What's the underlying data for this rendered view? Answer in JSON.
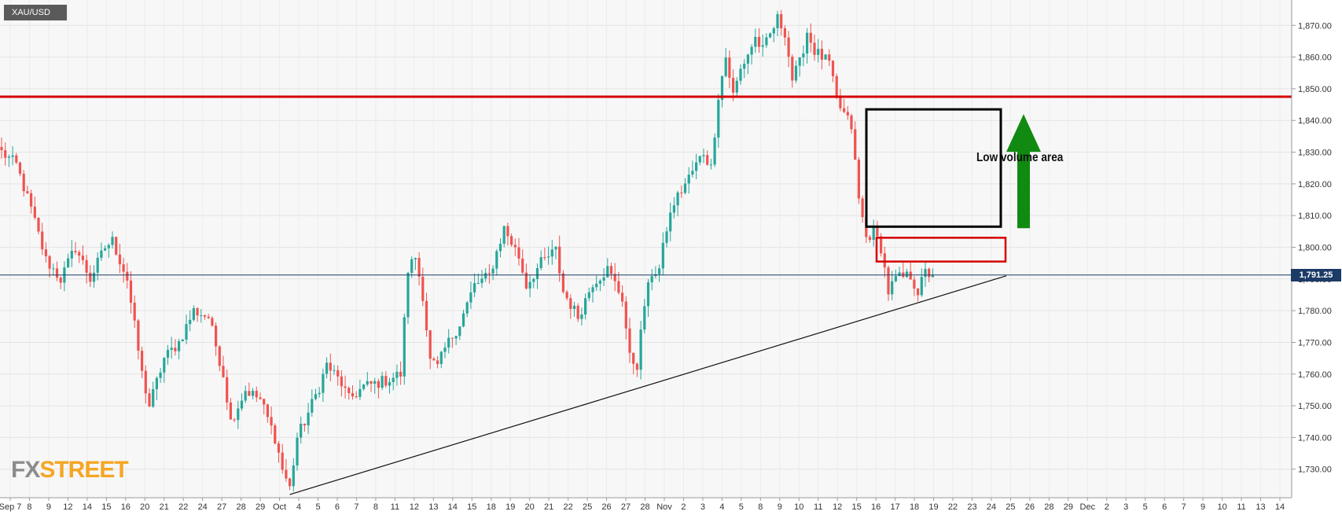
{
  "symbol": "XAU/USD",
  "current_price_label": "1,791.25",
  "annotation_label": "Low volume area",
  "logo": {
    "part1": "FX",
    "part2": "STREET"
  },
  "colors": {
    "up": "#26a69a",
    "down": "#ef5350",
    "resistance": "#d40000",
    "box_black": "#000000",
    "box_red": "#d40000",
    "arrow": "#118a11",
    "price_badge": "#1c3b66"
  },
  "chart_data": {
    "type": "candlestick",
    "title": "XAU/USD",
    "ylim": [
      1721,
      1878
    ],
    "yticks": [
      1730,
      1740,
      1750,
      1760,
      1770,
      1780,
      1790,
      1800,
      1810,
      1820,
      1830,
      1840,
      1850,
      1860,
      1870
    ],
    "ytick_labels": [
      "1,730.00",
      "1,740.00",
      "1,750.00",
      "1,760.00",
      "1,770.00",
      "1,780.00",
      "1,790.00",
      "1,800.00",
      "1,810.00",
      "1,820.00",
      "1,830.00",
      "1,840.00",
      "1,850.00",
      "1,860.00",
      "1,870.00"
    ],
    "x_labels": [
      "Sep 7",
      "8",
      "9",
      "12",
      "14",
      "15",
      "16",
      "20",
      "21",
      "22",
      "24",
      "27",
      "28",
      "29",
      "Oct",
      "4",
      "5",
      "6",
      "7",
      "8",
      "11",
      "12",
      "13",
      "14",
      "15",
      "18",
      "19",
      "20",
      "21",
      "22",
      "25",
      "26",
      "27",
      "28",
      "Nov",
      "2",
      "3",
      "4",
      "5",
      "8",
      "9",
      "10",
      "11",
      "12",
      "15",
      "16",
      "17",
      "18",
      "19",
      "22",
      "23",
      "24",
      "25",
      "26",
      "28",
      "29",
      "Dec",
      "2",
      "3",
      "5",
      "6",
      "7",
      "9",
      "10",
      "11",
      "13",
      "14"
    ],
    "path_anchors": [
      [
        0,
        1830
      ],
      [
        4,
        1826
      ],
      [
        8,
        1812
      ],
      [
        12,
        1796
      ],
      [
        16,
        1790
      ],
      [
        20,
        1800
      ],
      [
        24,
        1790
      ],
      [
        28,
        1800
      ],
      [
        30,
        1802
      ],
      [
        34,
        1790
      ],
      [
        38,
        1760
      ],
      [
        40,
        1750
      ],
      [
        44,
        1765
      ],
      [
        48,
        1770
      ],
      [
        52,
        1780
      ],
      [
        56,
        1778
      ],
      [
        60,
        1760
      ],
      [
        62,
        1745
      ],
      [
        66,
        1755
      ],
      [
        70,
        1752
      ],
      [
        74,
        1740
      ],
      [
        76,
        1730
      ],
      [
        78,
        1724
      ],
      [
        80,
        1740
      ],
      [
        82,
        1745
      ],
      [
        86,
        1756
      ],
      [
        88,
        1763
      ],
      [
        92,
        1757
      ],
      [
        94,
        1752
      ],
      [
        98,
        1756
      ],
      [
        104,
        1758
      ],
      [
        108,
        1760
      ],
      [
        110,
        1793
      ],
      [
        112,
        1797
      ],
      [
        114,
        1785
      ],
      [
        116,
        1764
      ],
      [
        118,
        1762
      ],
      [
        120,
        1768
      ],
      [
        124,
        1776
      ],
      [
        128,
        1788
      ],
      [
        132,
        1791
      ],
      [
        136,
        1806
      ],
      [
        140,
        1797
      ],
      [
        142,
        1788
      ],
      [
        146,
        1795
      ],
      [
        150,
        1799
      ],
      [
        152,
        1786
      ],
      [
        156,
        1778
      ],
      [
        160,
        1789
      ],
      [
        164,
        1793
      ],
      [
        168,
        1784
      ],
      [
        170,
        1765
      ],
      [
        172,
        1763
      ],
      [
        174,
        1782
      ],
      [
        176,
        1792
      ],
      [
        178,
        1793
      ],
      [
        180,
        1806
      ],
      [
        182,
        1814
      ],
      [
        186,
        1822
      ],
      [
        190,
        1830
      ],
      [
        192,
        1825
      ],
      [
        194,
        1848
      ],
      [
        196,
        1860
      ],
      [
        198,
        1848
      ],
      [
        200,
        1856
      ],
      [
        204,
        1866
      ],
      [
        206,
        1862
      ],
      [
        210,
        1872
      ],
      [
        212,
        1868
      ],
      [
        214,
        1853
      ],
      [
        216,
        1858
      ],
      [
        218,
        1868
      ],
      [
        220,
        1862
      ],
      [
        224,
        1858
      ],
      [
        226,
        1846
      ],
      [
        230,
        1838
      ],
      [
        232,
        1815
      ],
      [
        234,
        1803
      ],
      [
        236,
        1805
      ],
      [
        238,
        1800
      ],
      [
        240,
        1786
      ],
      [
        242,
        1790
      ],
      [
        246,
        1791
      ],
      [
        248,
        1786
      ],
      [
        250,
        1792
      ],
      [
        252,
        1791
      ]
    ],
    "candle_count": 253,
    "last_price": 1791.25,
    "lines": {
      "resistance": 1847.5,
      "current_price": 1791.25,
      "trendline": {
        "from_candle": 78,
        "from_price": 1722,
        "to_index": 1280,
        "to_price": 1791
      }
    },
    "annotations": [
      {
        "type": "rect",
        "color": "black",
        "label": "Low volume area",
        "price_top": 1843.5,
        "price_bottom": 1806.5
      },
      {
        "type": "rect",
        "color": "red",
        "price_top": 1803,
        "price_bottom": 1795.5
      },
      {
        "type": "arrow",
        "direction": "up",
        "color": "green",
        "price_from": 1806,
        "price_to": 1842
      }
    ]
  }
}
